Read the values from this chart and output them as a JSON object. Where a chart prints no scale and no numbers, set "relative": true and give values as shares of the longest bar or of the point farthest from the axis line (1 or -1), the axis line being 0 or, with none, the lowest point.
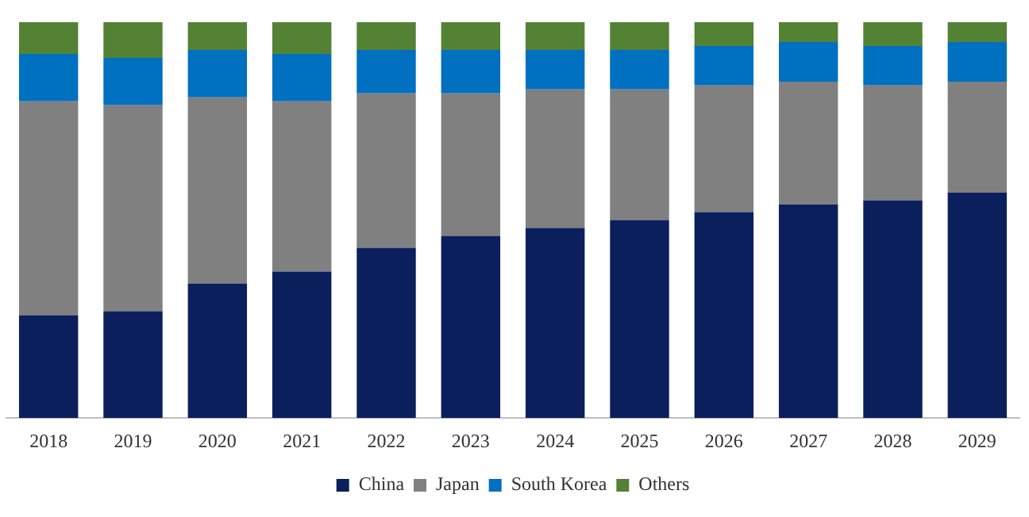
{
  "chart_data": {
    "type": "bar",
    "stacked": true,
    "relative": true,
    "legend": "bottom",
    "grid": false,
    "categories": [
      "2018",
      "2019",
      "2020",
      "2021",
      "2022",
      "2023",
      "2024",
      "2025",
      "2026",
      "2027",
      "2028",
      "2029"
    ],
    "series": [
      {
        "name": "China",
        "color": "#0b1f5c",
        "values": [
          0.26,
          0.27,
          0.34,
          0.37,
          0.43,
          0.46,
          0.48,
          0.5,
          0.52,
          0.54,
          0.55,
          0.57
        ]
      },
      {
        "name": "Japan",
        "color": "#808080",
        "values": [
          0.54,
          0.52,
          0.47,
          0.43,
          0.39,
          0.36,
          0.35,
          0.33,
          0.32,
          0.31,
          0.29,
          0.28
        ]
      },
      {
        "name": "South Korea",
        "color": "#0070c0",
        "values": [
          0.12,
          0.12,
          0.12,
          0.12,
          0.11,
          0.11,
          0.1,
          0.1,
          0.1,
          0.1,
          0.1,
          0.1
        ]
      },
      {
        "name": "Others",
        "color": "#548235",
        "values": [
          0.08,
          0.09,
          0.07,
          0.08,
          0.07,
          0.07,
          0.07,
          0.07,
          0.06,
          0.05,
          0.06,
          0.05
        ]
      }
    ]
  }
}
